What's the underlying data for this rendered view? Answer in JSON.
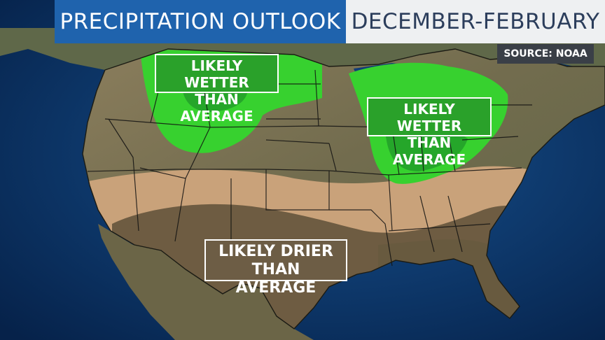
{
  "header": {
    "title": "PRECIPITATION OUTLOOK",
    "period": "DECEMBER-FEBRUARY",
    "source": "SOURCE: NOAA"
  },
  "labels": {
    "wet_west": {
      "line1": "LIKELY WETTER",
      "line2": "THAN AVERAGE"
    },
    "wet_east": {
      "line1": "LIKELY WETTER",
      "line2": "THAN AVERAGE"
    },
    "dry_south": {
      "line1": "LIKELY DRIER",
      "line2": "THAN AVERAGE"
    }
  },
  "colors": {
    "ocean": "#0b2f5e",
    "land": "#6f6a50",
    "wet_light": "#37d12f",
    "wet_dark": "#23a625",
    "dry_light": "#c9a27a",
    "dry_dark": "#6e5c42",
    "title_blue": "#1f63ad",
    "title_light": "#eef0f2"
  }
}
